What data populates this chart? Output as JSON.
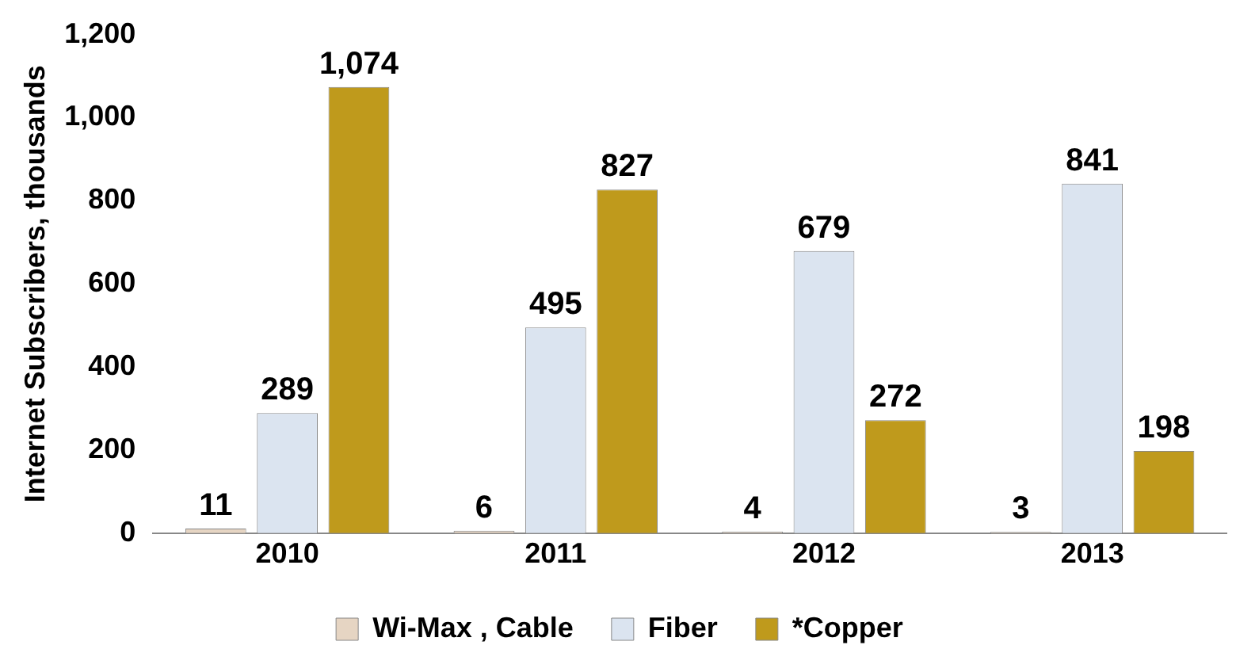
{
  "chart_data": {
    "type": "bar",
    "ylabel": "Internet Subscribers, thousands",
    "categories": [
      "2010",
      "2011",
      "2012",
      "2013"
    ],
    "series": [
      {
        "name": "Wi-Max , Cable",
        "color": "#e6d5c3",
        "values": [
          11,
          6,
          4,
          3
        ],
        "value_labels": [
          "11",
          "6",
          "4",
          "3"
        ]
      },
      {
        "name": "Fiber",
        "color": "#dbe4f0",
        "values": [
          289,
          495,
          679,
          841
        ],
        "value_labels": [
          "289",
          "495",
          "679",
          "841"
        ]
      },
      {
        "name": "*Copper",
        "color": "#bf9a1c",
        "values": [
          1074,
          827,
          272,
          198
        ],
        "value_labels": [
          "1,074",
          "827",
          "272",
          "198"
        ]
      }
    ],
    "ylim": [
      0,
      1200
    ],
    "yticks": [
      0,
      200,
      400,
      600,
      800,
      {
        "value": 1000,
        "label": "1,000"
      },
      {
        "value": 1200,
        "label": "1,200"
      }
    ],
    "grid": false,
    "legend": "bottom"
  }
}
